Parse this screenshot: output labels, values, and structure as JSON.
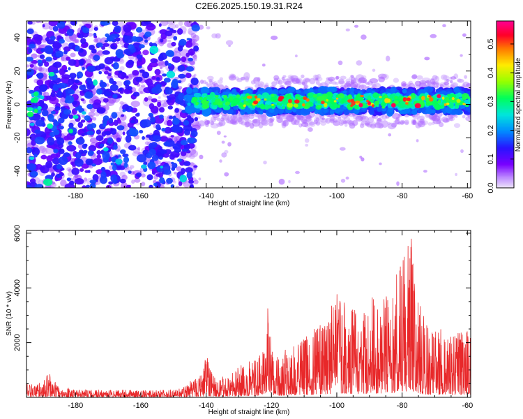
{
  "title": "C2E6.2025.150.19.31.R24",
  "colors": {
    "snr_line": "#e8282a",
    "spectrogram_low": "#7a00ff",
    "spectrogram_high": "#ff0040"
  },
  "chart_data": [
    {
      "type": "heatmap",
      "xlabel": "Height of straight line (km)",
      "ylabel": "Frequency (Hz)",
      "xlim": [
        -195,
        -59
      ],
      "ylim": [
        -50,
        50
      ],
      "xticks": [
        -180,
        -160,
        -140,
        -120,
        -100,
        -80,
        -60
      ],
      "yticks": [
        -40,
        -20,
        0,
        20,
        40
      ],
      "noise_region_x": [
        -195,
        -145
      ],
      "echo_band_center_hz": 2,
      "echo_band_halfwidth_hz": 7,
      "colorbar": {
        "label": "Normalized spectral amplitude",
        "range": [
          0.0,
          0.58
        ],
        "ticks": [
          0.0,
          0.1,
          0.2,
          0.3,
          0.4,
          0.5
        ],
        "tick_labels": [
          "0.0",
          "0.1",
          "0.2",
          "0.3",
          "0.4",
          "0.5"
        ],
        "colormap": "rainbow (violet-blue-cyan-green-yellow-red-pink)"
      }
    },
    {
      "type": "line",
      "xlabel": "Height of straight line (km)",
      "ylabel": "SNR (10 * v/v)",
      "xlim": [
        -195,
        -59
      ],
      "ylim": [
        0,
        6100
      ],
      "xticks": [
        -180,
        -160,
        -140,
        -120,
        -100,
        -80,
        -60
      ],
      "yticks": [
        2000,
        4000,
        6000
      ],
      "series": [
        {
          "envelope_x": [
            -195,
            -190,
            -188,
            -185,
            -180,
            -170,
            -160,
            -150,
            -147,
            -145,
            -143,
            -141,
            -140,
            -138,
            -136,
            -134,
            -132,
            -130,
            -128,
            -126,
            -124,
            -122,
            -121,
            -120,
            -118,
            -115,
            -112,
            -110,
            -108,
            -106,
            -104,
            -102,
            -100,
            -98,
            -96,
            -94,
            -92,
            -90,
            -88,
            -86,
            -84,
            -82,
            -80,
            -78,
            -77,
            -76,
            -74,
            -72,
            -70,
            -68,
            -66,
            -64,
            -62,
            -60,
            -59
          ],
          "envelope_y": [
            500,
            600,
            950,
            400,
            300,
            280,
            260,
            280,
            350,
            600,
            700,
            900,
            1600,
            800,
            700,
            800,
            900,
            1100,
            1300,
            1400,
            1500,
            1900,
            3600,
            1700,
            1600,
            1800,
            2000,
            2200,
            2500,
            2600,
            2800,
            3200,
            3900,
            3700,
            3400,
            3200,
            3100,
            3800,
            3600,
            3700,
            3800,
            4400,
            5200,
            5600,
            5950,
            4000,
            3200,
            2600,
            2400,
            2500,
            2200,
            2300,
            2400,
            2600,
            2200
          ]
        }
      ]
    }
  ]
}
